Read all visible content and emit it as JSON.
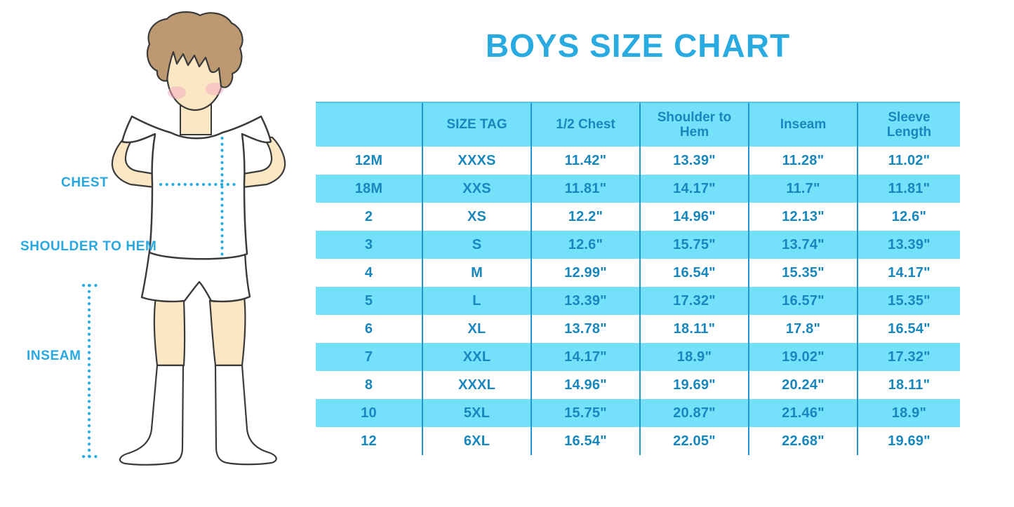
{
  "title": "BOYS SIZE CHART",
  "colors": {
    "accent": "#29abe2",
    "table_fill": "#74e0fa",
    "table_divider": "#2096ce",
    "table_text": "#1787bd",
    "skin": "#fbe7c4",
    "hair": "#bd9972",
    "blush": "#f2a9bd"
  },
  "figure": {
    "description": "boy-in-tshirt-shorts-and-knee-socks-measurement-diagram",
    "labels": {
      "chest": "CHEST",
      "shoulder_to_hem": "SHOULDER TO HEM",
      "inseam": "INSEAM"
    }
  },
  "chart_data": {
    "type": "table",
    "title": "BOYS SIZE CHART",
    "columns": [
      "",
      "SIZE TAG",
      "1/2 Chest",
      "Shoulder to Hem",
      "Inseam",
      "Sleeve Length"
    ],
    "rows": [
      [
        "12M",
        "XXXS",
        "11.42\"",
        "13.39\"",
        "11.28\"",
        "11.02\""
      ],
      [
        "18M",
        "XXS",
        "11.81\"",
        "14.17\"",
        "11.7\"",
        "11.81\""
      ],
      [
        "2",
        "XS",
        "12.2\"",
        "14.96\"",
        "12.13\"",
        "12.6\""
      ],
      [
        "3",
        "S",
        "12.6\"",
        "15.75\"",
        "13.74\"",
        "13.39\""
      ],
      [
        "4",
        "M",
        "12.99\"",
        "16.54\"",
        "15.35\"",
        "14.17\""
      ],
      [
        "5",
        "L",
        "13.39\"",
        "17.32\"",
        "16.57\"",
        "15.35\""
      ],
      [
        "6",
        "XL",
        "13.78\"",
        "18.11\"",
        "17.8\"",
        "16.54\""
      ],
      [
        "7",
        "XXL",
        "14.17\"",
        "18.9\"",
        "19.02\"",
        "17.32\""
      ],
      [
        "8",
        "XXXL",
        "14.96\"",
        "19.69\"",
        "20.24\"",
        "18.11\""
      ],
      [
        "10",
        "5XL",
        "15.75\"",
        "20.87\"",
        "21.46\"",
        "18.9\""
      ],
      [
        "12",
        "6XL",
        "16.54\"",
        "22.05\"",
        "22.68\"",
        "19.69\""
      ]
    ],
    "row_striping": "header and alternate rows filled light cyan, others white",
    "grid": "vertical dividers only"
  }
}
